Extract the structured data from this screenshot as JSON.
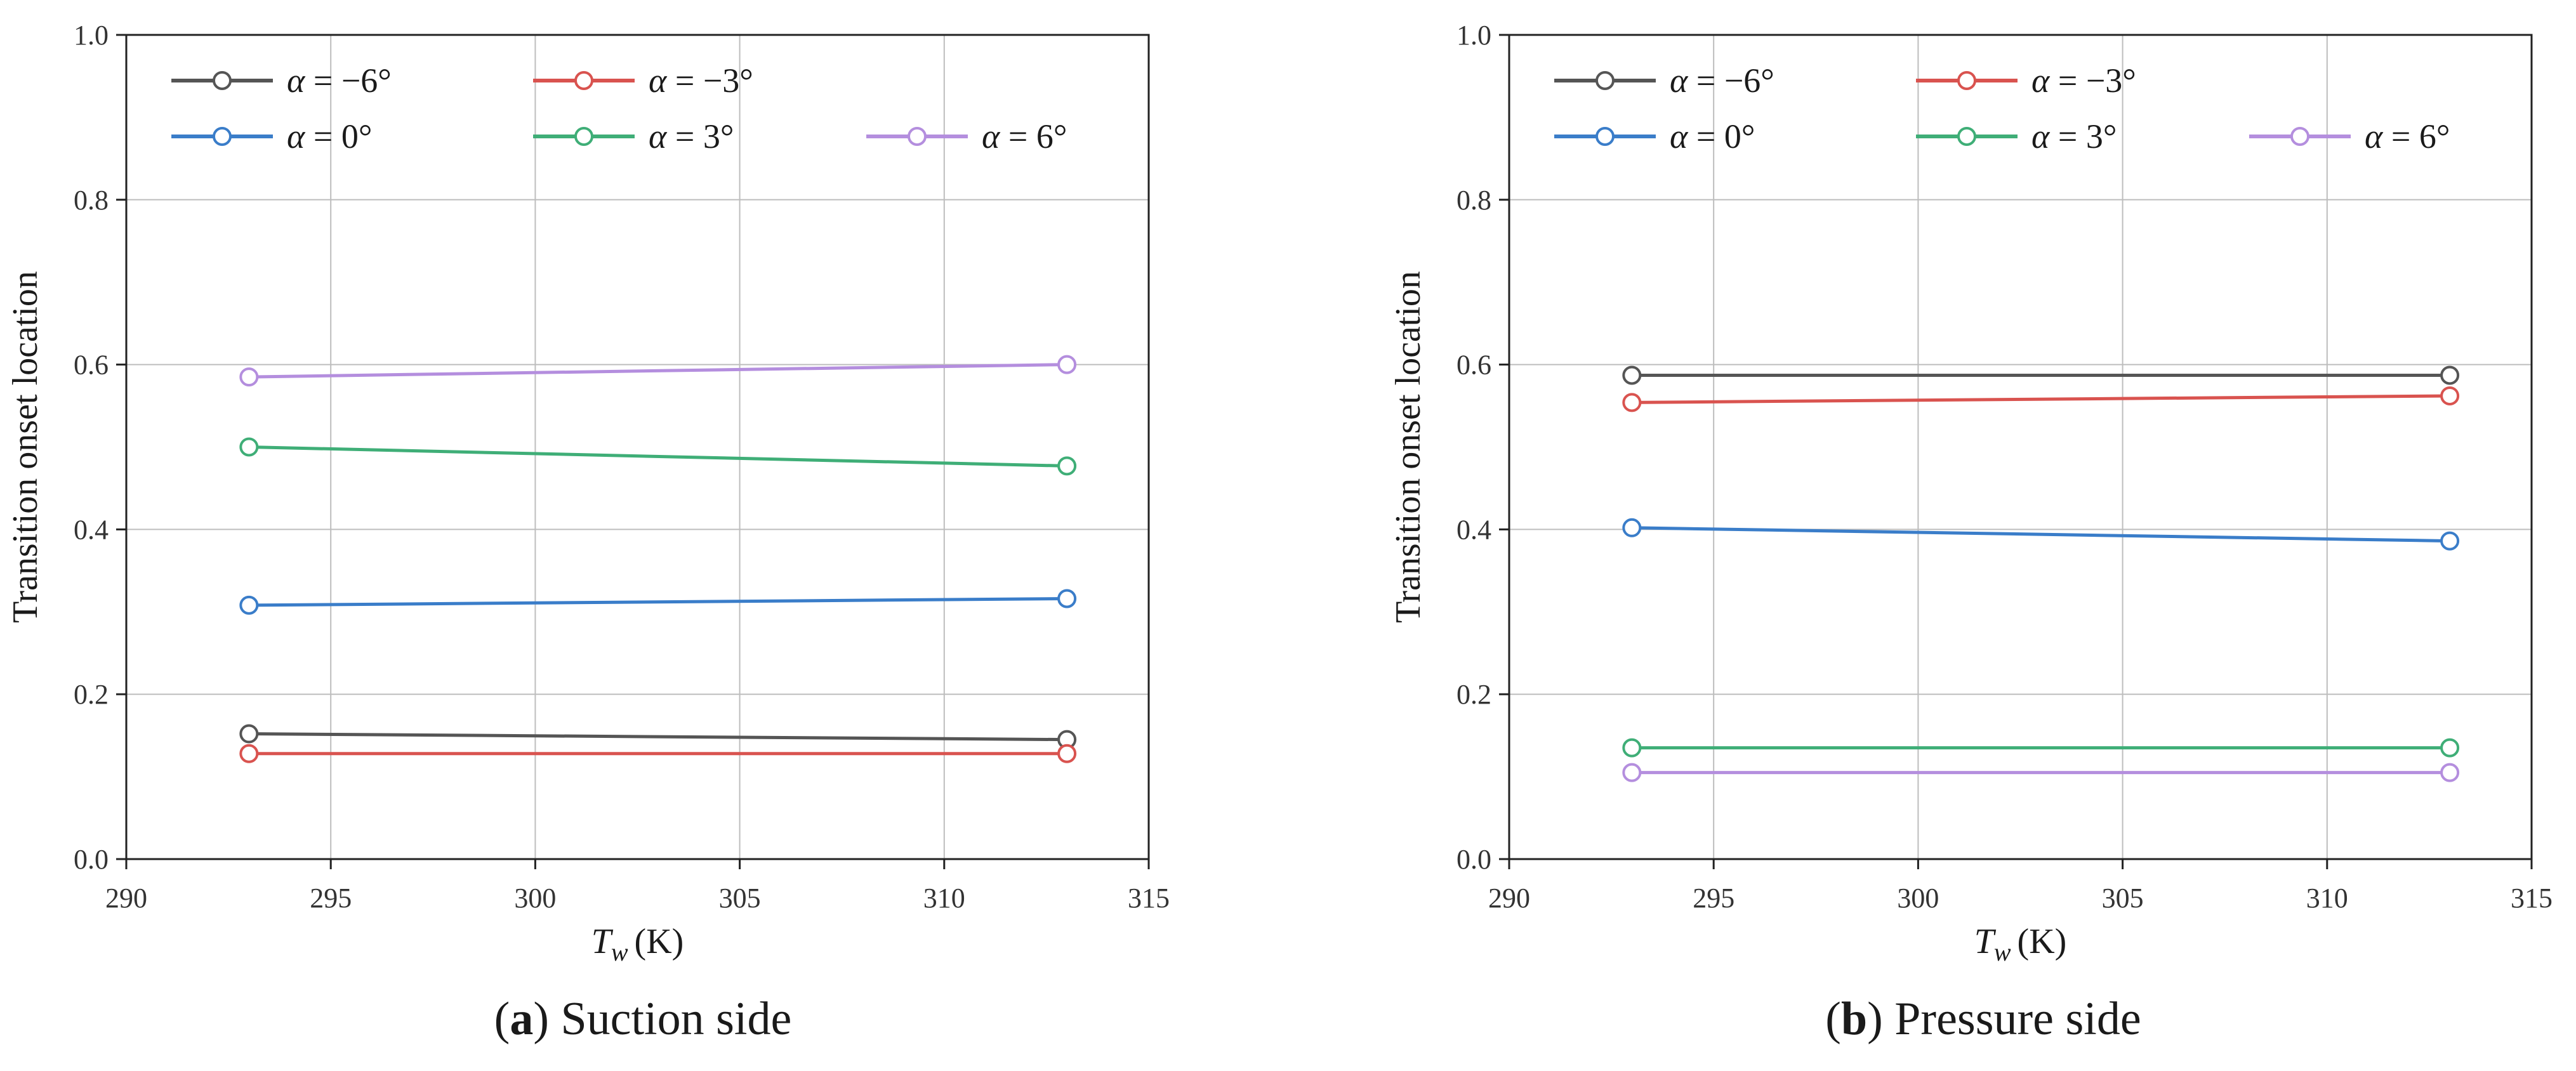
{
  "chart_data": [
    {
      "type": "line",
      "id": "suction",
      "caption_letter": "a",
      "caption_text": "Suction side",
      "title": "",
      "xlabel_main": "T",
      "xlabel_sub": "w",
      "xlabel_unit": "(K)",
      "ylabel": "Transition onset location",
      "xlim": [
        290,
        315
      ],
      "ylim": [
        0.0,
        1.0
      ],
      "xticks": [
        290,
        295,
        300,
        305,
        310,
        315
      ],
      "yticks": [
        "0.0",
        "0.2",
        "0.4",
        "0.6",
        "0.8",
        "1.0"
      ],
      "grid": true,
      "legend_position": "top-left",
      "x": [
        293,
        313
      ],
      "series": [
        {
          "name": "α = −6°",
          "symbol": "α",
          "label_value": " = −6°",
          "color": "#555555",
          "values": [
            0.152,
            0.145
          ]
        },
        {
          "name": "α = −3°",
          "symbol": "α",
          "label_value": " = −3°",
          "color": "#d9534f",
          "values": [
            0.128,
            0.128
          ]
        },
        {
          "name": "α = 0°",
          "symbol": "α",
          "label_value": " = 0°",
          "color": "#3a7dc9",
          "values": [
            0.308,
            0.316
          ]
        },
        {
          "name": "α = 3°",
          "symbol": "α",
          "label_value": " = 3°",
          "color": "#3fae77",
          "values": [
            0.5,
            0.477
          ]
        },
        {
          "name": "α = 6°",
          "symbol": "α",
          "label_value": " = 6°",
          "color": "#b48ede",
          "values": [
            0.585,
            0.6
          ]
        }
      ]
    },
    {
      "type": "line",
      "id": "pressure",
      "caption_letter": "b",
      "caption_text": "Pressure side",
      "title": "",
      "xlabel_main": "T",
      "xlabel_sub": "w",
      "xlabel_unit": "(K)",
      "ylabel": "Transition onset location",
      "xlim": [
        290,
        315
      ],
      "ylim": [
        0.0,
        1.0
      ],
      "xticks": [
        290,
        295,
        300,
        305,
        310,
        315
      ],
      "yticks": [
        "0.0",
        "0.2",
        "0.4",
        "0.6",
        "0.8",
        "1.0"
      ],
      "grid": true,
      "legend_position": "top-left",
      "x": [
        293,
        313
      ],
      "series": [
        {
          "name": "α = −6°",
          "symbol": "α",
          "label_value": " = −6°",
          "color": "#555555",
          "values": [
            0.587,
            0.587
          ]
        },
        {
          "name": "α = −3°",
          "symbol": "α",
          "label_value": " = −3°",
          "color": "#d9534f",
          "values": [
            0.554,
            0.562
          ]
        },
        {
          "name": "α = 0°",
          "symbol": "α",
          "label_value": " = 0°",
          "color": "#3a7dc9",
          "values": [
            0.402,
            0.386
          ]
        },
        {
          "name": "α = 3°",
          "symbol": "α",
          "label_value": " = 3°",
          "color": "#3fae77",
          "values": [
            0.135,
            0.135
          ]
        },
        {
          "name": "α = 6°",
          "symbol": "α",
          "label_value": " = 6°",
          "color": "#b48ede",
          "values": [
            0.105,
            0.105
          ]
        }
      ]
    }
  ]
}
